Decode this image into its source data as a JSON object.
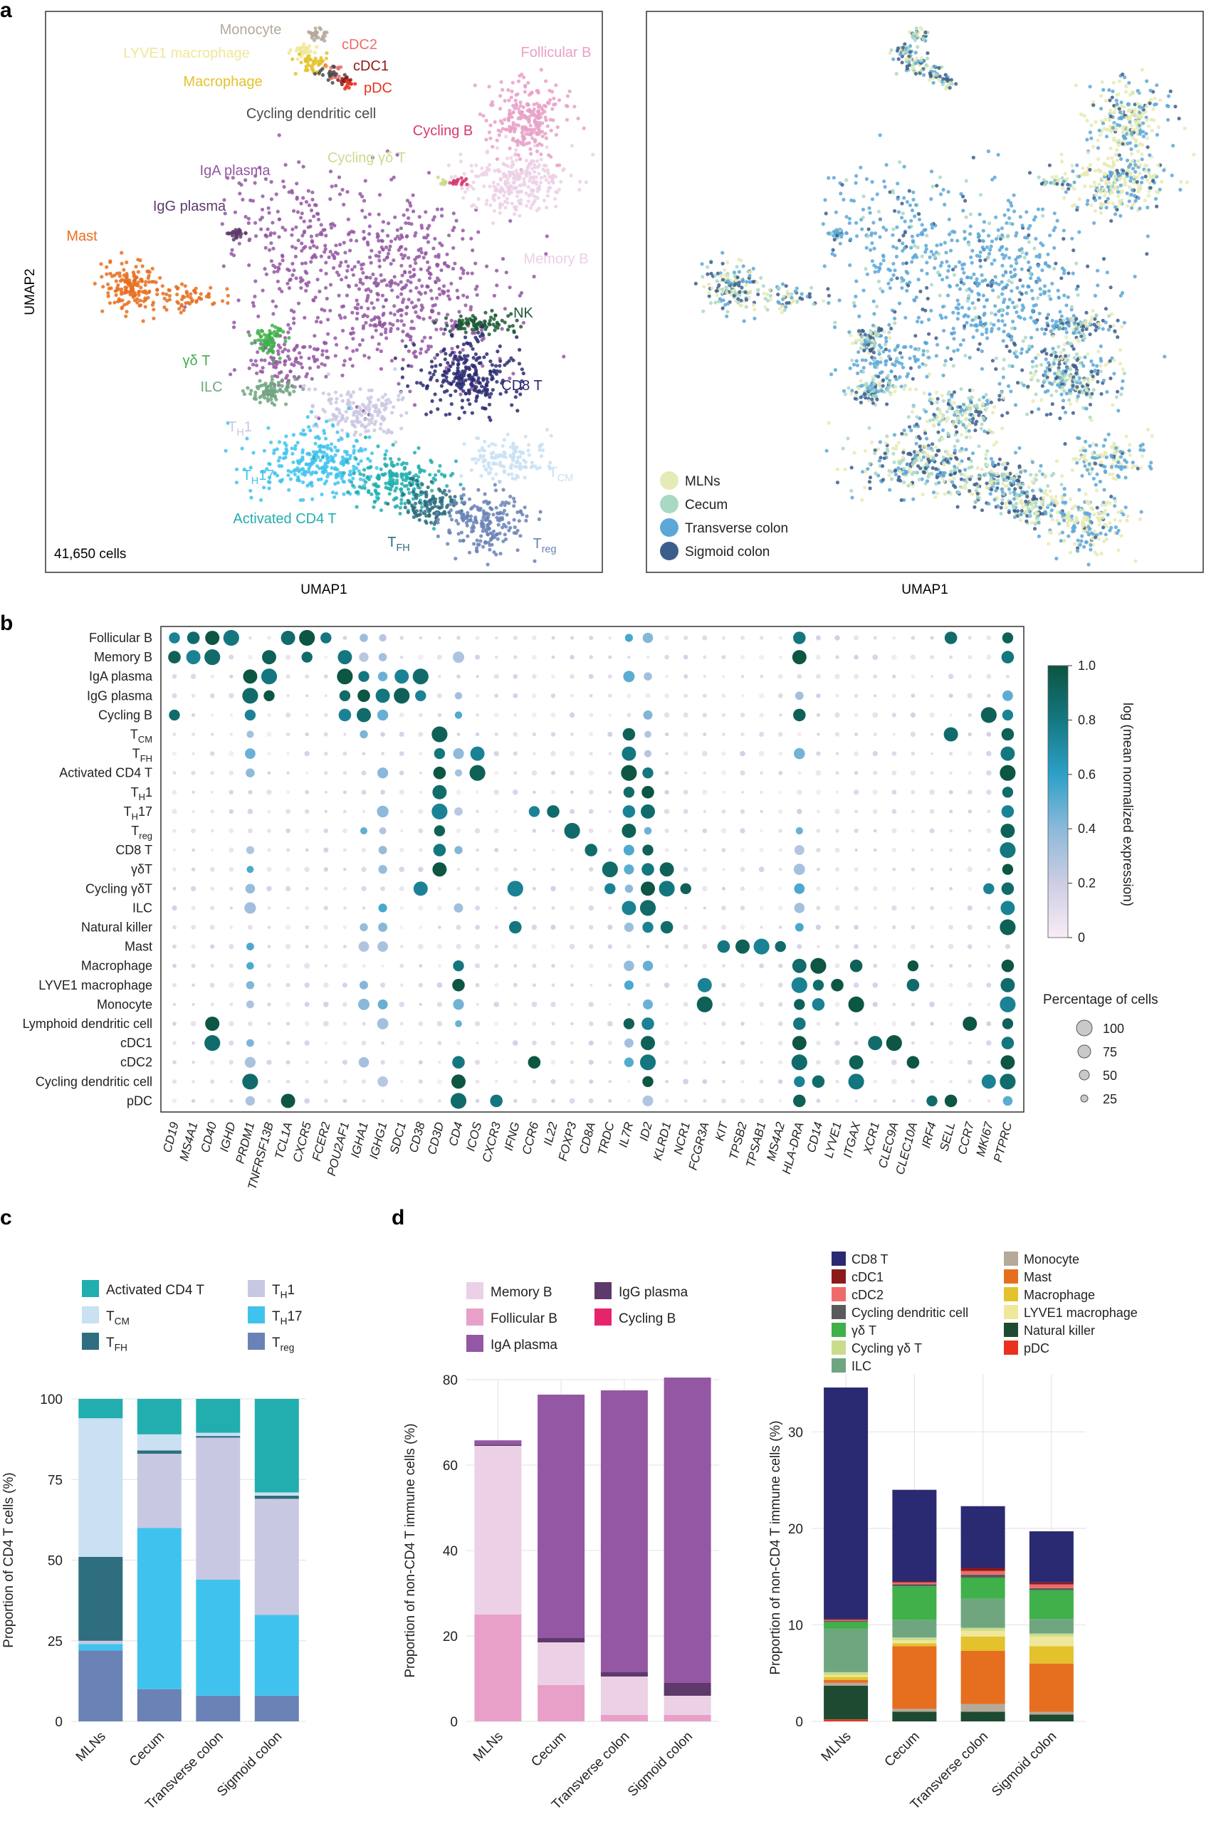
{
  "panel_letters": {
    "a": "a",
    "b": "b",
    "c": "c",
    "d": "d"
  },
  "panel_a": {
    "left": {
      "xlabel": "UMAP1",
      "ylabel": "UMAP2",
      "cell_count": "41,650 cells",
      "clusters": [
        {
          "key": "monocyte",
          "label": "Monocyte",
          "color": "#b5a99a"
        },
        {
          "key": "lyve1",
          "label": "LYVE1 macrophage",
          "color": "#efe79a"
        },
        {
          "key": "macro",
          "label": "Macrophage",
          "color": "#e3c22c"
        },
        {
          "key": "cdc2",
          "label": "cDC2",
          "color": "#ef6b6b"
        },
        {
          "key": "cdc1",
          "label": "cDC1",
          "color": "#8c1a1a"
        },
        {
          "key": "pdc",
          "label": "pDC",
          "color": "#e8321f"
        },
        {
          "key": "cycdc",
          "label": "Cycling dendritic cell",
          "color": "#4b4b4b"
        },
        {
          "key": "follb",
          "label": "Follicular B",
          "color": "#e8a0c8"
        },
        {
          "key": "cycb",
          "label": "Cycling B",
          "color": "#d63a6e"
        },
        {
          "key": "cycgd",
          "label": "Cycling γδ T",
          "color": "#c9dc8e"
        },
        {
          "key": "iga",
          "label": "IgA plasma",
          "color": "#9457a3"
        },
        {
          "key": "igg",
          "label": "IgG plasma",
          "color": "#5d3a6b"
        },
        {
          "key": "memb",
          "label": "Memory B",
          "color": "#ecd0e6"
        },
        {
          "key": "mast",
          "label": "Mast",
          "color": "#e66f1f"
        },
        {
          "key": "nk",
          "label": "NK",
          "color": "#1d5a36"
        },
        {
          "key": "gd",
          "label": "γδ T",
          "color": "#3fb04a"
        },
        {
          "key": "cd8",
          "label": "CD8 T",
          "color": "#2a2a72"
        },
        {
          "key": "ilc",
          "label": "ILC",
          "color": "#6fa680"
        },
        {
          "key": "th1",
          "label": "TH1",
          "color": "#c9c8e2"
        },
        {
          "key": "th17",
          "label": "TH17",
          "color": "#3fc3ee"
        },
        {
          "key": "tcm",
          "label": "TCM",
          "color": "#c9e1f2"
        },
        {
          "key": "act",
          "label": "Activated CD4 T",
          "color": "#22aeae"
        },
        {
          "key": "tfh",
          "label": "TFH",
          "color": "#2e6e7e"
        },
        {
          "key": "treg",
          "label": "Treg",
          "color": "#6a82b6"
        }
      ]
    },
    "right": {
      "xlabel": "UMAP1",
      "legend": [
        {
          "label": "MLNs",
          "color": "#e6eab4"
        },
        {
          "label": "Cecum",
          "color": "#a9d8c4"
        },
        {
          "label": "Transverse colon",
          "color": "#5aa7d8"
        },
        {
          "label": "Sigmoid colon",
          "color": "#3d5d8c"
        }
      ]
    }
  },
  "panel_b": {
    "genes": [
      "CD19",
      "MS4A1",
      "CD40",
      "IGHD",
      "PRDM1",
      "TNFRSF13B",
      "TCL1A",
      "CXCR5",
      "FCER2",
      "POU2AF1",
      "IGHA1",
      "IGHG1",
      "SDC1",
      "CD38",
      "CD3D",
      "CD4",
      "ICOS",
      "CXCR3",
      "IFNG",
      "CCR6",
      "IL22",
      "FOXP3",
      "CD8A",
      "TRDC",
      "IL7R",
      "ID2",
      "KLRD1",
      "NCR1",
      "FCGR3A",
      "KIT",
      "TPSB2",
      "TPSAB1",
      "MS4A2",
      "HLA-DRA",
      "CD14",
      "LYVE1",
      "ITGAX",
      "XCR1",
      "CLEC9A",
      "CLEC10A",
      "IRF4",
      "SELL",
      "CCR7",
      "MKI67",
      "PTPRC"
    ],
    "cells": [
      "Follicular B",
      "Memory B",
      "IgA plasma",
      "IgG plasma",
      "Cycling B",
      "TCM",
      "TFH",
      "Activated CD4 T",
      "TH1",
      "TH17",
      "Treg",
      "CD8 T",
      "γδT",
      "Cycling γδT",
      "ILC",
      "Natural killer",
      "Mast",
      "Macrophage",
      "LYVE1 macrophage",
      "Monocyte",
      "Lymphoid dendritic cell",
      "cDC1",
      "cDC2",
      "Cycling dendritic cell",
      "pDC"
    ],
    "colorbar": {
      "title": "log (mean normalized expression)",
      "ticks": [
        "0",
        "0.2",
        "0.4",
        "0.6",
        "0.8",
        "1.0"
      ]
    },
    "size_legend": {
      "title": "Percentage of cells",
      "values": [
        "100",
        "75",
        "50",
        "25"
      ]
    }
  },
  "panel_c": {
    "legend": [
      "Activated CD4 T",
      "TH1",
      "TCM",
      "TH17",
      "TFH",
      "Treg"
    ]
  },
  "panel_d": {
    "left_legend": [
      "Memory B",
      "IgG plasma",
      "Follicular B",
      "Cycling B",
      "IgA plasma"
    ],
    "right_legend": [
      "CD8 T",
      "Monocyte",
      "cDC1",
      "Mast",
      "cDC2",
      "Macrophage",
      "Cycling dendritic cell",
      "LYVE1 macrophage",
      "γδ T",
      "Natural killer",
      "Cycling γδ T",
      "pDC",
      "ILC"
    ]
  },
  "chart_data": [
    {
      "type": "bar",
      "panel": "c",
      "categories": [
        "MLNs",
        "Cecum",
        "Transverse colon",
        "Sigmoid colon"
      ],
      "ylabel": "Proportion of CD4 T cells (%)",
      "ylim": [
        0,
        100
      ],
      "yticks": [
        0,
        25,
        50,
        75,
        100
      ],
      "series": [
        {
          "name": "Treg",
          "color": "#6a82b6",
          "values": [
            22,
            10,
            8,
            8
          ]
        },
        {
          "name": "TH17",
          "color": "#3fc3ee",
          "values": [
            2,
            50,
            36,
            25
          ]
        },
        {
          "name": "TH1",
          "color": "#c9c8e2",
          "values": [
            1,
            23,
            44,
            36
          ]
        },
        {
          "name": "TFH",
          "color": "#2e6e7e",
          "values": [
            26,
            1,
            0.5,
            1
          ]
        },
        {
          "name": "TCM",
          "color": "#c9e1f2",
          "values": [
            43,
            5,
            1,
            1
          ]
        },
        {
          "name": "Activated CD4 T",
          "color": "#22aeae",
          "values": [
            6,
            11,
            10.5,
            29
          ]
        }
      ]
    },
    {
      "type": "bar",
      "panel": "d-left",
      "categories": [
        "MLNs",
        "Cecum",
        "Transverse colon",
        "Sigmoid colon"
      ],
      "ylabel": "Proportion of non-CD4 T immune cells (%)",
      "ylim": [
        0,
        80
      ],
      "yticks": [
        0,
        20,
        40,
        60,
        80
      ],
      "series": [
        {
          "name": "Cycling B",
          "color": "#e8a0c8",
          "values": [
            0,
            0,
            0,
            0
          ]
        },
        {
          "name": "Follicular B",
          "color": "#e8a0c8",
          "values": [
            25,
            8.5,
            1.5,
            1.5
          ]
        },
        {
          "name": "Memory B",
          "color": "#ecd0e6",
          "values": [
            39.5,
            10,
            9,
            4.5
          ]
        },
        {
          "name": "IgG plasma",
          "color": "#5d3a6b",
          "values": [
            0.3,
            1,
            1,
            3
          ]
        },
        {
          "name": "IgA plasma",
          "color": "#9457a3",
          "values": [
            1,
            57,
            66,
            71.5
          ]
        }
      ]
    },
    {
      "type": "bar",
      "panel": "d-right",
      "categories": [
        "MLNs",
        "Cecum",
        "Transverse colon",
        "Sigmoid colon"
      ],
      "ylabel": "Proportion of non-CD4 T immune cells (%)",
      "ylim": [
        0,
        36
      ],
      "yticks": [
        0,
        10,
        20,
        30
      ],
      "series": [
        {
          "name": "pDC",
          "color": "#e8321f",
          "values": [
            0.2,
            0,
            0,
            0
          ]
        },
        {
          "name": "Natural killer",
          "color": "#1d4a30",
          "values": [
            3.5,
            1,
            1,
            0.7
          ]
        },
        {
          "name": "Monocyte",
          "color": "#b5a99a",
          "values": [
            0.3,
            0.3,
            0.8,
            0.3
          ]
        },
        {
          "name": "Mast",
          "color": "#e66f1f",
          "values": [
            0.3,
            6.5,
            5.5,
            5
          ]
        },
        {
          "name": "Macrophage",
          "color": "#e3c22c",
          "values": [
            0.3,
            0.3,
            1.5,
            1.8
          ]
        },
        {
          "name": "LYVE1 macrophage",
          "color": "#efe79a",
          "values": [
            0.2,
            0.3,
            0.6,
            1
          ]
        },
        {
          "name": "Cycling γδ T",
          "color": "#c9dc8e",
          "values": [
            0.3,
            0.3,
            0.3,
            0.3
          ]
        },
        {
          "name": "ILC",
          "color": "#6fa680",
          "values": [
            4.5,
            1.8,
            3,
            1.5
          ]
        },
        {
          "name": "γδ T",
          "color": "#3fb04a",
          "values": [
            0.7,
            3.5,
            2.2,
            3
          ]
        },
        {
          "name": "Cycling dendritic cell",
          "color": "#5a5a5a",
          "values": [
            0.1,
            0.2,
            0.3,
            0.2
          ]
        },
        {
          "name": "cDC2",
          "color": "#ef6b6b",
          "values": [
            0.1,
            0.2,
            0.4,
            0.4
          ]
        },
        {
          "name": "cDC1",
          "color": "#8c1a1a",
          "values": [
            0.1,
            0.1,
            0.3,
            0.2
          ]
        },
        {
          "name": "CD8 T",
          "color": "#2a2a72",
          "values": [
            24,
            9.5,
            6.4,
            5.3
          ]
        }
      ]
    }
  ]
}
